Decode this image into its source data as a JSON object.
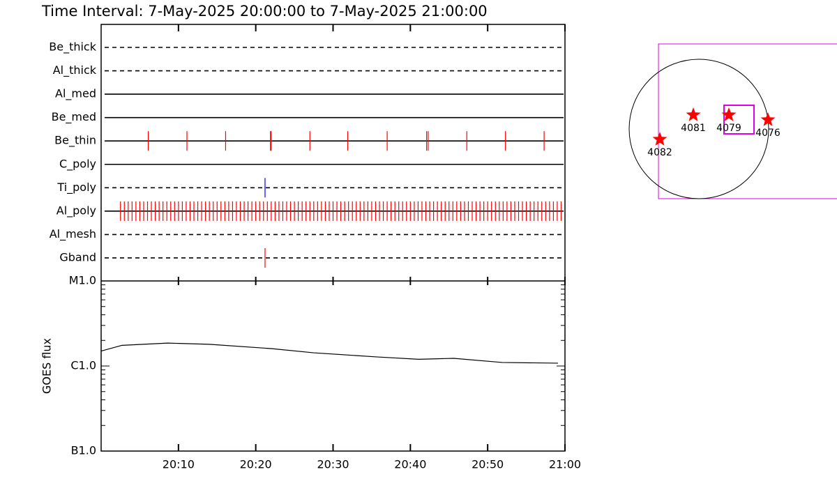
{
  "chart_data": [
    {
      "type": "event",
      "title": "Time Interval:  7-May-2025 20:00:00 to  7-May-2025 21:00:00",
      "xlim": [
        0,
        60
      ],
      "xticks": [
        {
          "value": 10,
          "label": "20:10"
        },
        {
          "value": 20,
          "label": "20:20"
        },
        {
          "value": 30,
          "label": "20:30"
        },
        {
          "value": 40,
          "label": "20:40"
        },
        {
          "value": 50,
          "label": "20:50"
        },
        {
          "value": 60,
          "label": "21:00"
        }
      ],
      "series": [
        {
          "name": "Be_thick",
          "style": "dashed",
          "color": "#ff0000",
          "values": []
        },
        {
          "name": "Al_thick",
          "style": "dashed",
          "color": "#ff0000",
          "values": []
        },
        {
          "name": "Al_med",
          "style": "solid",
          "color": "#ff0000",
          "values": []
        },
        {
          "name": "Be_med",
          "style": "solid",
          "color": "#ff0000",
          "values": []
        },
        {
          "name": "Be_thin",
          "style": "solid",
          "color": "#ff0000",
          "values": [
            6.1,
            11.1,
            16.1,
            21.9,
            22.0,
            27.0,
            31.9,
            37.0,
            42.1,
            42.3,
            47.3,
            52.3,
            57.3
          ]
        },
        {
          "name": "C_poly",
          "style": "solid",
          "color": "#ff0000",
          "values": []
        },
        {
          "name": "Ti_poly",
          "style": "dashed",
          "color": "#0000ff",
          "values": [
            21.2
          ]
        },
        {
          "name": "Al_poly",
          "style": "solid",
          "color": "#ff0000",
          "values": [
            2.5,
            3.0,
            3.5,
            4.0,
            4.5,
            5.0,
            5.5,
            6.0,
            6.5,
            7.0,
            7.5,
            8.0,
            8.5,
            9.0,
            9.5,
            10.0,
            10.5,
            11.0,
            11.5,
            12.0,
            12.5,
            13.0,
            13.5,
            14.0,
            14.5,
            15.0,
            15.5,
            16.0,
            16.5,
            17.0,
            17.5,
            18.0,
            18.5,
            19.0,
            19.5,
            20.0,
            20.5,
            21.0,
            21.5,
            22.0,
            22.5,
            23.0,
            23.5,
            24.0,
            24.5,
            25.0,
            25.5,
            26.0,
            26.5,
            27.0,
            27.5,
            28.0,
            28.5,
            29.0,
            29.5,
            30.0,
            30.5,
            31.0,
            31.5,
            32.0,
            32.5,
            33.0,
            33.5,
            34.0,
            34.5,
            35.0,
            35.5,
            36.0,
            36.5,
            37.0,
            37.5,
            38.0,
            38.5,
            39.0,
            39.5,
            40.0,
            40.5,
            41.0,
            41.5,
            42.0,
            42.5,
            43.0,
            43.5,
            44.0,
            44.5,
            45.0,
            45.5,
            46.0,
            46.5,
            47.0,
            47.5,
            48.0,
            48.5,
            49.0,
            49.5,
            50.0,
            50.5,
            51.0,
            51.5,
            52.0,
            52.5,
            53.0,
            53.5,
            54.0,
            54.5,
            55.0,
            55.5,
            56.0,
            56.5,
            57.0,
            57.5,
            58.0,
            58.5,
            59.0,
            59.5
          ]
        },
        {
          "name": "Al_mesh",
          "style": "dashed",
          "color": "#ff0000",
          "values": []
        },
        {
          "name": "Gband",
          "style": "dashed",
          "color": "#ff0000",
          "values": [
            21.2
          ]
        }
      ]
    },
    {
      "type": "line",
      "ylabel": "GOES flux",
      "log": true,
      "xlim": [
        0,
        60
      ],
      "ylim": [
        1e-07,
        1e-05
      ],
      "yticks": [
        {
          "value": 1e-07,
          "label": "B1.0"
        },
        {
          "value": 1e-06,
          "label": "C1.0"
        },
        {
          "value": 1e-05,
          "label": "M1.0"
        }
      ],
      "yminorticks": [
        2e-07,
        3e-07,
        4e-07,
        5e-07,
        6e-07,
        7e-07,
        8e-07,
        9e-07,
        2e-06,
        3e-06,
        4e-06,
        5e-06,
        6e-06,
        7e-06,
        8e-06,
        9e-06
      ],
      "x": [
        0,
        2.7,
        8.6,
        14.0,
        22.1,
        27.5,
        35.6,
        41.1,
        45.6,
        51.9,
        59.1
      ],
      "values": [
        1.5e-06,
        1.75e-06,
        1.86e-06,
        1.8e-06,
        1.6e-06,
        1.43e-06,
        1.28e-06,
        1.2e-06,
        1.23e-06,
        1.1e-06,
        1.08e-06
      ],
      "color": "#000000"
    }
  ],
  "map": {
    "regions": [
      {
        "label": "4082"
      },
      {
        "label": "4081"
      },
      {
        "label": "4079"
      },
      {
        "label": "4076"
      }
    ]
  }
}
